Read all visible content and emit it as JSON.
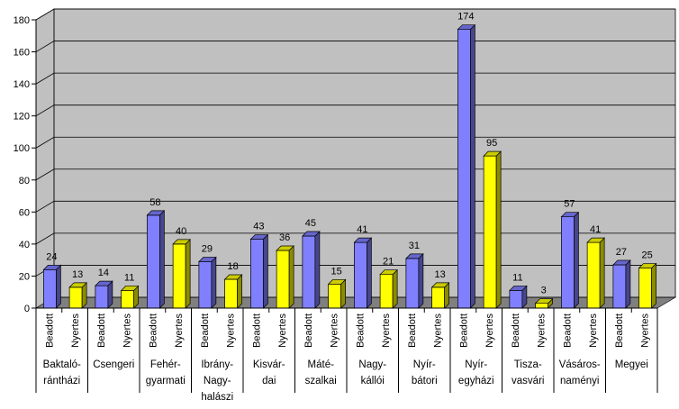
{
  "chart_data": {
    "type": "bar",
    "title": "",
    "xlabel": "",
    "ylabel": "",
    "ylim": [
      0,
      180
    ],
    "yticks": [
      0,
      20,
      40,
      60,
      80,
      100,
      120,
      140,
      160,
      180
    ],
    "grid": true,
    "legend": "none",
    "style": "3d-bars",
    "colors": {
      "Beadott": "#8080ff",
      "Nyertes": "#ffff00",
      "wall": "#c0c0c0",
      "floor": "#808080"
    },
    "bars": [
      {
        "group": "Baktaló-rántházi",
        "series": "Beadott",
        "value": 24
      },
      {
        "group": "Baktaló-rántházi",
        "series": "Nyertes",
        "value": 13
      },
      {
        "group": "Csengeri",
        "series": "Beadott",
        "value": 14
      },
      {
        "group": "Csengeri",
        "series": "Nyertes",
        "value": 11
      },
      {
        "group": "Fehér-gyarmati",
        "series": "Beadott",
        "value": 58
      },
      {
        "group": "Fehér-gyarmati",
        "series": "Nyertes",
        "value": 40
      },
      {
        "group": "Ibrány-Nagy-halászi",
        "series": "Beadott",
        "value": 29
      },
      {
        "group": "Ibrány-Nagy-halászi",
        "series": "Nyertes",
        "value": 18
      },
      {
        "group": "Kisvár-dai",
        "series": "Beadott",
        "value": 43
      },
      {
        "group": "Kisvár-dai",
        "series": "Nyertes",
        "value": 36
      },
      {
        "group": "Máté-szalkai",
        "series": "Beadott",
        "value": 45
      },
      {
        "group": "Máté-szalkai",
        "series": "Nyertes",
        "value": 15
      },
      {
        "group": "Nagy-kállói",
        "series": "Beadott",
        "value": 41
      },
      {
        "group": "Nagy-kállói",
        "series": "Nyertes",
        "value": 21
      },
      {
        "group": "Nyír-bátori",
        "series": "Beadott",
        "value": 31
      },
      {
        "group": "Nyír-bátori",
        "series": "Nyertes",
        "value": 13
      },
      {
        "group": "Nyír-egyházi",
        "series": "Beadott",
        "value": 174
      },
      {
        "group": "Nyír-egyházi",
        "series": "Nyertes",
        "value": 95
      },
      {
        "group": "Tisza-vasvári",
        "series": "Beadott",
        "value": 11
      },
      {
        "group": "Tisza-vasvári",
        "series": "Nyertes",
        "value": 3
      },
      {
        "group": "Vásáros-naményi",
        "series": "Beadott",
        "value": 57
      },
      {
        "group": "Vásáros-naményi",
        "series": "Nyertes",
        "value": 41
      },
      {
        "group": "Megyei",
        "series": "Beadott",
        "value": 27
      },
      {
        "group": "Megyei",
        "series": "Nyertes",
        "value": 25
      }
    ],
    "group_labels": [
      {
        "name": "Baktaló-rántházi",
        "lines": [
          "Baktaló-",
          "rántházi"
        ]
      },
      {
        "name": "Csengeri",
        "lines": [
          "Csengeri"
        ]
      },
      {
        "name": "Fehér-gyarmati",
        "lines": [
          "Fehér-",
          "gyarmati"
        ]
      },
      {
        "name": "Ibrány-Nagy-halászi",
        "lines": [
          "Ibrány-",
          "Nagy-",
          "halászi"
        ]
      },
      {
        "name": "Kisvár-dai",
        "lines": [
          "Kisvár-",
          "dai"
        ]
      },
      {
        "name": "Máté-szalkai",
        "lines": [
          "Máté-",
          "szalkai"
        ]
      },
      {
        "name": "Nagy-kállói",
        "lines": [
          "Nagy-",
          "kállói"
        ]
      },
      {
        "name": "Nyír-bátori",
        "lines": [
          "Nyír-",
          "bátori"
        ]
      },
      {
        "name": "Nyír-egyházi",
        "lines": [
          "Nyír-",
          "egyházi"
        ]
      },
      {
        "name": "Tisza-vasvári",
        "lines": [
          "Tisza-",
          "vasvári"
        ]
      },
      {
        "name": "Vásáros-naményi",
        "lines": [
          "Vásáros-",
          "naményi"
        ]
      },
      {
        "name": "Megyei",
        "lines": [
          "Megyei"
        ]
      }
    ]
  }
}
